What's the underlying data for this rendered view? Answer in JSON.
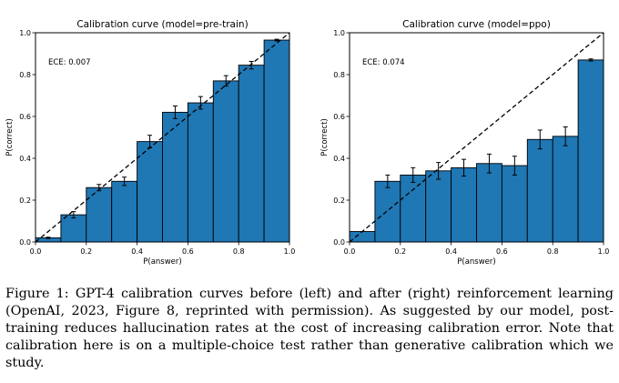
{
  "chart_data": [
    {
      "type": "bar",
      "title": "Calibration curve (model=pre-train)",
      "xlabel": "P(answer)",
      "ylabel": "P(correct)",
      "xlim": [
        0.0,
        1.0
      ],
      "ylim": [
        0.0,
        1.0
      ],
      "xticks": [
        "0.0",
        "0.2",
        "0.4",
        "0.6",
        "0.8",
        "1.0"
      ],
      "yticks": [
        "0.0",
        "0.2",
        "0.4",
        "0.6",
        "0.8",
        "1.0"
      ],
      "annotation": "ECE: 0.007",
      "bin_edges": [
        0.0,
        0.1,
        0.2,
        0.3,
        0.4,
        0.5,
        0.6,
        0.7,
        0.8,
        0.9,
        1.0
      ],
      "values": [
        0.02,
        0.13,
        0.26,
        0.29,
        0.48,
        0.62,
        0.665,
        0.77,
        0.845,
        0.965
      ],
      "errors": [
        0.003,
        0.015,
        0.015,
        0.02,
        0.03,
        0.03,
        0.03,
        0.025,
        0.018,
        0.004
      ],
      "diagonal": "dashed y = x",
      "bar_color": "#1f77b4"
    },
    {
      "type": "bar",
      "title": "Calibration curve (model=ppo)",
      "xlabel": "P(answer)",
      "ylabel": "P(correct)",
      "xlim": [
        0.0,
        1.0
      ],
      "ylim": [
        0.0,
        1.0
      ],
      "xticks": [
        "0.0",
        "0.2",
        "0.4",
        "0.6",
        "0.8",
        "1.0"
      ],
      "yticks": [
        "0.0",
        "0.2",
        "0.4",
        "0.6",
        "0.8",
        "1.0"
      ],
      "annotation": "ECE: 0.074",
      "bin_edges": [
        0.0,
        0.1,
        0.2,
        0.3,
        0.4,
        0.5,
        0.6,
        0.7,
        0.8,
        0.9,
        1.0
      ],
      "values": [
        0.05,
        0.29,
        0.32,
        0.34,
        0.355,
        0.375,
        0.365,
        0.49,
        0.505,
        0.87
      ],
      "errors": [
        0.0,
        0.03,
        0.035,
        0.04,
        0.04,
        0.045,
        0.045,
        0.045,
        0.045,
        0.005
      ],
      "diagonal": "dashed y = x",
      "bar_color": "#1f77b4"
    }
  ],
  "caption": "Figure 1: GPT-4 calibration curves before (left) and after (right) reinforcement learning (OpenAI, 2023, Figure 8, reprinted with permission). As suggested by our model, post-training reduces hallucination rates at the cost of increasing calibration error. Note that calibration here is on a multiple-choice test rather than generative calibration which we study."
}
